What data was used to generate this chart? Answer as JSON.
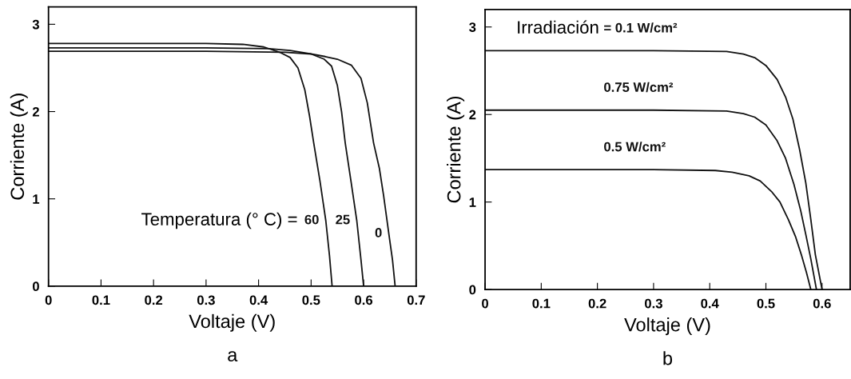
{
  "chart_data": [
    {
      "type": "line",
      "title": "a",
      "xlabel": "Voltaje (V)",
      "ylabel": "Corriente (A)",
      "xlim": [
        0,
        0.7
      ],
      "ylim": [
        0,
        3.2
      ],
      "xticks": [
        0,
        0.1,
        0.2,
        0.3,
        0.4,
        0.5,
        0.6,
        0.7
      ],
      "yticks": [
        0,
        1,
        2,
        3
      ],
      "grid": false,
      "legend": false,
      "series": [
        {
          "name": "60",
          "color": "#111111",
          "x": [
            0,
            0.3,
            0.37,
            0.41,
            0.44,
            0.46,
            0.475,
            0.488,
            0.497,
            0.505,
            0.517,
            0.528,
            0.535,
            0.54
          ],
          "values": [
            2.78,
            2.78,
            2.77,
            2.74,
            2.68,
            2.62,
            2.5,
            2.25,
            1.95,
            1.64,
            1.2,
            0.75,
            0.35,
            0
          ]
        },
        {
          "name": "25",
          "color": "#111111",
          "x": [
            0,
            0.3,
            0.42,
            0.46,
            0.5,
            0.525,
            0.539,
            0.55,
            0.558,
            0.565,
            0.576,
            0.587,
            0.595,
            0.6
          ],
          "values": [
            2.73,
            2.73,
            2.72,
            2.7,
            2.66,
            2.6,
            2.52,
            2.3,
            2.0,
            1.64,
            1.2,
            0.75,
            0.3,
            0
          ]
        },
        {
          "name": "0",
          "color": "#111111",
          "x": [
            0,
            0.3,
            0.45,
            0.5,
            0.527,
            0.55,
            0.577,
            0.595,
            0.607,
            0.619,
            0.63,
            0.638,
            0.648,
            0.655,
            0.66
          ],
          "values": [
            2.69,
            2.69,
            2.68,
            2.66,
            2.63,
            2.6,
            2.53,
            2.38,
            2.1,
            1.64,
            1.35,
            1.04,
            0.6,
            0.3,
            0
          ]
        }
      ],
      "annotations": [
        "Temperatura (° C) ="
      ]
    },
    {
      "type": "line",
      "title": "b",
      "xlabel": "Voltaje (V)",
      "ylabel": "Corriente (A)",
      "xlim": [
        0,
        0.65
      ],
      "ylim": [
        0,
        3.2
      ],
      "xticks": [
        0,
        0.1,
        0.2,
        0.3,
        0.4,
        0.5,
        0.6
      ],
      "yticks": [
        0,
        1,
        2,
        3
      ],
      "grid": false,
      "legend": false,
      "series": [
        {
          "name": "= 0.1 W/cm²",
          "color": "#111111",
          "x": [
            0,
            0.3,
            0.43,
            0.46,
            0.48,
            0.5,
            0.52,
            0.535,
            0.548,
            0.56,
            0.571,
            0.58,
            0.588,
            0.6
          ],
          "values": [
            2.73,
            2.73,
            2.72,
            2.69,
            2.65,
            2.56,
            2.4,
            2.2,
            1.95,
            1.6,
            1.22,
            0.8,
            0.4,
            0
          ]
        },
        {
          "name": "0.75 W/cm²",
          "color": "#111111",
          "x": [
            0,
            0.3,
            0.43,
            0.46,
            0.48,
            0.5,
            0.52,
            0.535,
            0.55,
            0.562,
            0.571,
            0.58,
            0.59
          ],
          "values": [
            2.05,
            2.05,
            2.04,
            2.01,
            1.97,
            1.88,
            1.7,
            1.5,
            1.2,
            0.9,
            0.63,
            0.35,
            0
          ]
        },
        {
          "name": "0.5 W/cm²",
          "color": "#111111",
          "x": [
            0,
            0.3,
            0.41,
            0.44,
            0.47,
            0.49,
            0.51,
            0.525,
            0.54,
            0.553,
            0.563,
            0.572,
            0.58
          ],
          "values": [
            1.37,
            1.37,
            1.36,
            1.34,
            1.3,
            1.24,
            1.12,
            1.0,
            0.8,
            0.6,
            0.4,
            0.2,
            0
          ]
        }
      ],
      "annotations": [
        "Irradiación"
      ]
    }
  ]
}
